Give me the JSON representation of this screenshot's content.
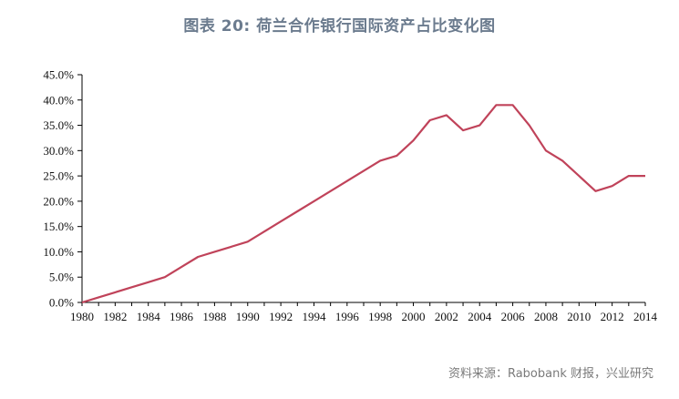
{
  "figure": {
    "title": "图表 20: 荷兰合作银行国际资产占比变化图",
    "source": "资料来源：Rabobank 财报，兴业研究"
  },
  "colors": {
    "line": "#c0435a",
    "axis": "#000000"
  },
  "chart_data": {
    "type": "line",
    "title": "图表 20: 荷兰合作银行国际资产占比变化图",
    "xlabel": "",
    "ylabel": "",
    "xlim": [
      1980,
      2014
    ],
    "ylim": [
      0,
      45
    ],
    "y_ticks": [
      "0.0%",
      "5.0%",
      "10.0%",
      "15.0%",
      "20.0%",
      "25.0%",
      "30.0%",
      "35.0%",
      "40.0%",
      "45.0%"
    ],
    "x_ticks": [
      "1980",
      "1982",
      "1984",
      "1986",
      "1988",
      "1990",
      "1992",
      "1994",
      "1996",
      "1998",
      "2000",
      "2002",
      "2004",
      "2006",
      "2008",
      "2010",
      "2012",
      "2014"
    ],
    "grid": false,
    "legend": "none",
    "series": [
      {
        "x": [
          1980,
          1981,
          1982,
          1983,
          1984,
          1985,
          1986,
          1987,
          1988,
          1989,
          1990,
          1991,
          1992,
          1993,
          1994,
          1995,
          1996,
          1997,
          1998,
          1999,
          2000,
          2001,
          2002,
          2003,
          2004,
          2005,
          2006,
          2007,
          2008,
          2009,
          2010,
          2011,
          2012,
          2013,
          2014
        ],
        "values": [
          0,
          1,
          2,
          3,
          4,
          5,
          7,
          9,
          10,
          11,
          12,
          14,
          16,
          18,
          20,
          22,
          24,
          26,
          28,
          29,
          32,
          36,
          37,
          34,
          35,
          39,
          39,
          35,
          30,
          28,
          25,
          22,
          23,
          25,
          25
        ]
      }
    ]
  }
}
